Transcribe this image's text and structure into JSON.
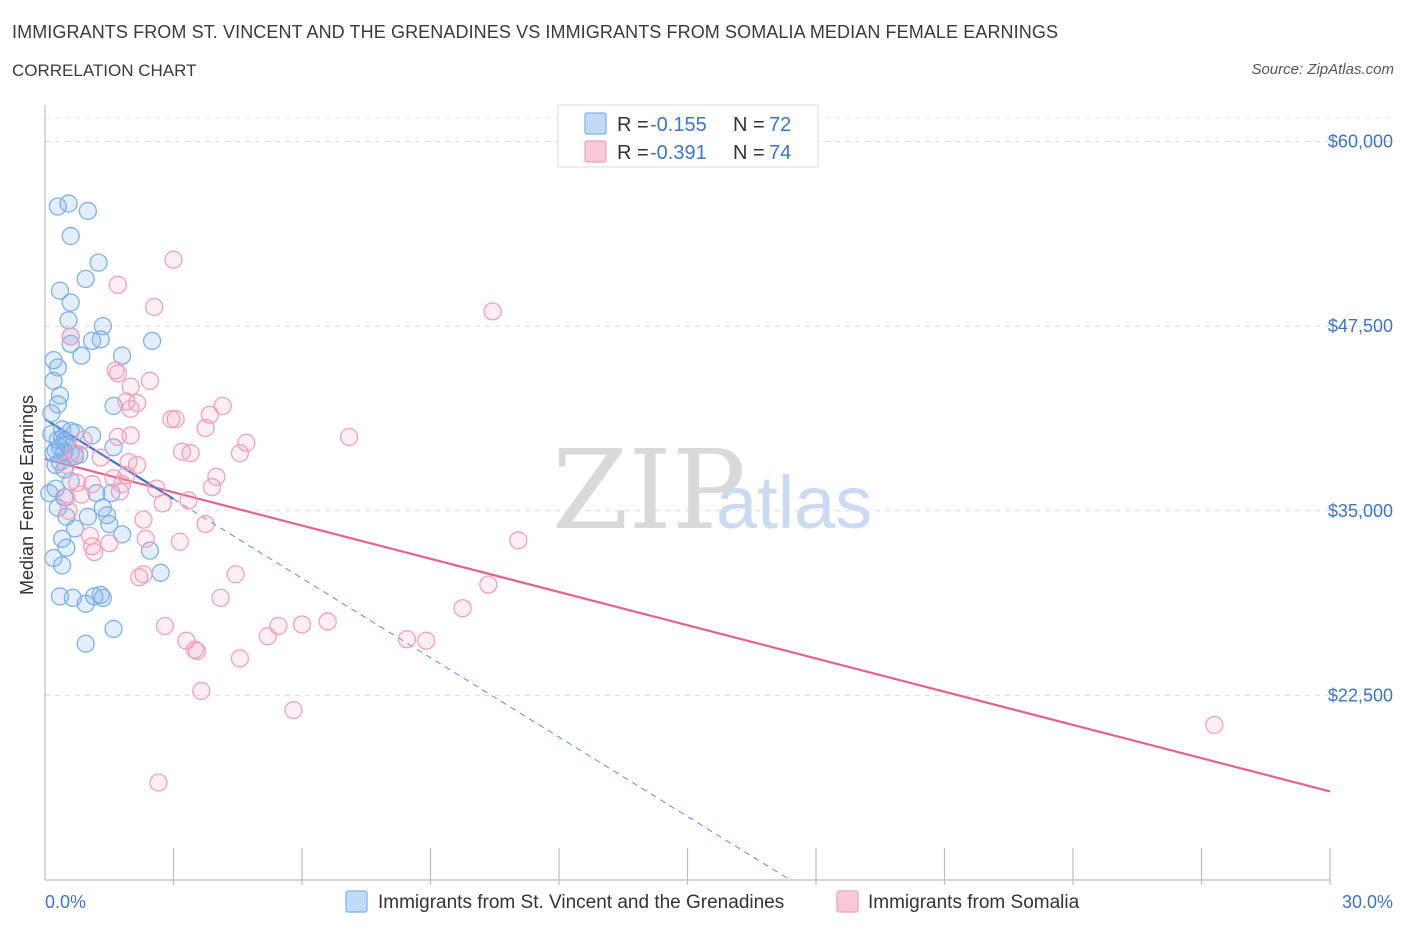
{
  "title": "IMMIGRANTS FROM ST. VINCENT AND THE GRENADINES VS IMMIGRANTS FROM SOMALIA MEDIAN FEMALE EARNINGS",
  "subtitle": "CORRELATION CHART",
  "source": "Source: ZipAtlas.com",
  "watermark": {
    "zip": "ZIP",
    "atlas": "atlas"
  },
  "legend": {
    "r_label": "R =",
    "n_label": "N =",
    "series": [
      {
        "r": "-0.155",
        "n": "72"
      },
      {
        "r": "-0.391",
        "n": "74"
      }
    ]
  },
  "chart_data": {
    "type": "scatter",
    "title": "IMMIGRANTS FROM ST. VINCENT AND THE GRENADINES VS IMMIGRANTS FROM SOMALIA MEDIAN FEMALE EARNINGS",
    "xlabel": "",
    "ylabel": "Median Female Earnings",
    "xlim": [
      0,
      30
    ],
    "ylim": [
      10000,
      62000
    ],
    "x_tick_labels": [
      "0.0%",
      "30.0%"
    ],
    "y_ticks": [
      22500,
      35000,
      47500,
      60000
    ],
    "y_tick_labels": [
      "$22,500",
      "$35,000",
      "$47,500",
      "$60,000"
    ],
    "series": [
      {
        "name": "Immigrants from St. Vincent and the Grenadines",
        "color": "#7fb0e8",
        "line_color": "#3f6fcf",
        "r": -0.155,
        "n": 72,
        "trend": {
          "x_start": 0.0,
          "y_start": 41200,
          "x_end": 3.0,
          "y_end": 35800,
          "dashed_to_x": 17.4,
          "dashed_to_y": 10000
        },
        "points": [
          [
            0.3,
            55600
          ],
          [
            0.55,
            55800
          ],
          [
            1.0,
            55300
          ],
          [
            0.6,
            53600
          ],
          [
            1.25,
            51800
          ],
          [
            0.95,
            50700
          ],
          [
            0.35,
            49900
          ],
          [
            0.6,
            49100
          ],
          [
            0.55,
            47900
          ],
          [
            1.35,
            47500
          ],
          [
            0.6,
            46800
          ],
          [
            1.3,
            46600
          ],
          [
            0.6,
            46300
          ],
          [
            1.1,
            46500
          ],
          [
            2.5,
            46500
          ],
          [
            0.85,
            45500
          ],
          [
            1.8,
            45500
          ],
          [
            0.2,
            45200
          ],
          [
            0.3,
            44700
          ],
          [
            0.2,
            43800
          ],
          [
            0.35,
            42800
          ],
          [
            0.3,
            42200
          ],
          [
            1.6,
            42100
          ],
          [
            0.15,
            41600
          ],
          [
            0.4,
            40500
          ],
          [
            0.6,
            40400
          ],
          [
            0.7,
            40300
          ],
          [
            1.1,
            40100
          ],
          [
            0.3,
            39800
          ],
          [
            0.45,
            39700
          ],
          [
            0.5,
            39500
          ],
          [
            0.35,
            39300
          ],
          [
            1.6,
            39300
          ],
          [
            0.25,
            39100
          ],
          [
            0.45,
            39000
          ],
          [
            0.2,
            38900
          ],
          [
            0.6,
            38900
          ],
          [
            0.8,
            38800
          ],
          [
            0.35,
            38300
          ],
          [
            0.45,
            37800
          ],
          [
            0.6,
            37000
          ],
          [
            0.25,
            36500
          ],
          [
            0.1,
            36200
          ],
          [
            1.2,
            36200
          ],
          [
            1.55,
            36200
          ],
          [
            0.45,
            35900
          ],
          [
            0.3,
            35200
          ],
          [
            1.35,
            35200
          ],
          [
            0.5,
            34600
          ],
          [
            1.0,
            34600
          ],
          [
            1.45,
            34700
          ],
          [
            1.5,
            34100
          ],
          [
            1.8,
            33400
          ],
          [
            0.4,
            33100
          ],
          [
            0.7,
            33800
          ],
          [
            0.5,
            32500
          ],
          [
            0.2,
            31800
          ],
          [
            2.45,
            32300
          ],
          [
            0.4,
            31300
          ],
          [
            2.7,
            30800
          ],
          [
            0.35,
            29200
          ],
          [
            0.65,
            29100
          ],
          [
            1.15,
            29200
          ],
          [
            1.3,
            29300
          ],
          [
            1.35,
            29100
          ],
          [
            0.95,
            28700
          ],
          [
            0.95,
            26000
          ],
          [
            1.6,
            27000
          ],
          [
            0.15,
            40200
          ],
          [
            0.25,
            38100
          ],
          [
            0.7,
            38700
          ],
          [
            0.4,
            39900
          ]
        ]
      },
      {
        "name": "Immigrants from Somalia",
        "color": "#f2a0bc",
        "line_color": "#e2638e",
        "r": -0.391,
        "n": 74,
        "trend": {
          "x_start": 0.0,
          "y_start": 38500,
          "x_end": 30.0,
          "y_end": 16000
        },
        "points": [
          [
            3.0,
            52000
          ],
          [
            1.7,
            50300
          ],
          [
            2.55,
            48800
          ],
          [
            10.45,
            48500
          ],
          [
            0.6,
            46800
          ],
          [
            1.65,
            44500
          ],
          [
            1.7,
            44300
          ],
          [
            2.45,
            43800
          ],
          [
            2.0,
            43400
          ],
          [
            1.9,
            42400
          ],
          [
            2.15,
            42300
          ],
          [
            4.15,
            42100
          ],
          [
            2.0,
            41900
          ],
          [
            3.85,
            41500
          ],
          [
            2.95,
            41200
          ],
          [
            3.05,
            41200
          ],
          [
            3.75,
            40600
          ],
          [
            2.0,
            40100
          ],
          [
            7.1,
            40000
          ],
          [
            1.7,
            40000
          ],
          [
            4.7,
            39600
          ],
          [
            3.2,
            39000
          ],
          [
            4.55,
            38900
          ],
          [
            3.4,
            38900
          ],
          [
            0.7,
            38900
          ],
          [
            1.95,
            38300
          ],
          [
            2.15,
            38100
          ],
          [
            0.5,
            38100
          ],
          [
            1.9,
            37400
          ],
          [
            1.6,
            37200
          ],
          [
            4.0,
            37300
          ],
          [
            0.75,
            36900
          ],
          [
            1.1,
            36800
          ],
          [
            1.8,
            36800
          ],
          [
            2.6,
            36500
          ],
          [
            3.9,
            36600
          ],
          [
            1.75,
            36300
          ],
          [
            0.85,
            36100
          ],
          [
            0.5,
            35900
          ],
          [
            3.35,
            35700
          ],
          [
            2.75,
            35500
          ],
          [
            0.55,
            35000
          ],
          [
            2.3,
            34400
          ],
          [
            3.75,
            34100
          ],
          [
            1.05,
            33300
          ],
          [
            2.35,
            33100
          ],
          [
            3.15,
            32900
          ],
          [
            11.05,
            33000
          ],
          [
            1.5,
            32800
          ],
          [
            1.1,
            32600
          ],
          [
            1.15,
            32200
          ],
          [
            2.3,
            30700
          ],
          [
            2.2,
            30500
          ],
          [
            4.45,
            30700
          ],
          [
            10.35,
            30000
          ],
          [
            4.1,
            29100
          ],
          [
            9.75,
            28400
          ],
          [
            2.8,
            27200
          ],
          [
            6.0,
            27300
          ],
          [
            5.45,
            27200
          ],
          [
            6.6,
            27500
          ],
          [
            5.2,
            26500
          ],
          [
            3.3,
            26200
          ],
          [
            8.45,
            26300
          ],
          [
            8.9,
            26200
          ],
          [
            3.5,
            25600
          ],
          [
            3.55,
            25500
          ],
          [
            4.55,
            25000
          ],
          [
            3.65,
            22800
          ],
          [
            5.8,
            21500
          ],
          [
            27.3,
            20500
          ],
          [
            2.65,
            16600
          ],
          [
            0.9,
            39800
          ],
          [
            1.3,
            38600
          ]
        ]
      }
    ]
  }
}
